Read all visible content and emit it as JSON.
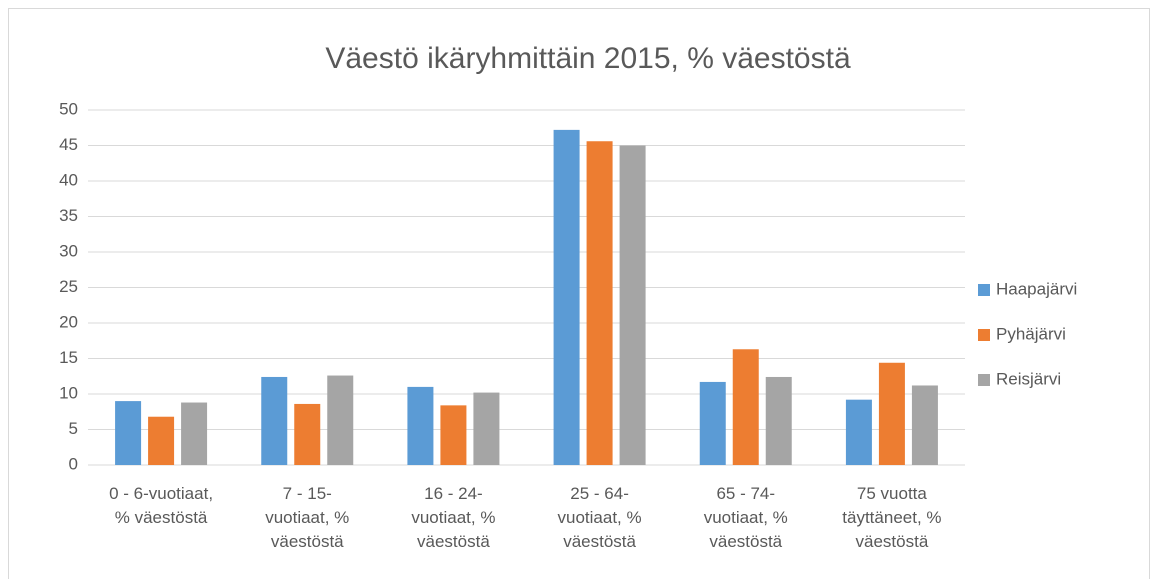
{
  "chart_data": {
    "type": "bar",
    "title": "Väestö ikäryhmittäin 2015, % väestöstä",
    "categories": [
      "0 - 6-vuotiaat,\n% väestöstä",
      "7 - 15-\nvuotiaat, %\nväestöstä",
      "16 - 24-\nvuotiaat, %\nväestöstä",
      "25 - 64-\nvuotiaat, %\nväestöstä",
      "65 - 74-\nvuotiaat, %\nväestöstä",
      "75 vuotta\ntäyttäneet, %\nväestöstä"
    ],
    "series": [
      {
        "name": "Haapajärvi",
        "color": "#5b9bd5",
        "values": [
          9.0,
          12.4,
          11.0,
          47.2,
          11.7,
          9.2
        ]
      },
      {
        "name": "Pyhäjärvi",
        "color": "#ed7d31",
        "values": [
          6.8,
          8.6,
          8.4,
          45.6,
          16.3,
          14.4
        ]
      },
      {
        "name": "Reisjärvi",
        "color": "#a5a5a5",
        "values": [
          8.8,
          12.6,
          10.2,
          45.0,
          12.4,
          11.2
        ]
      }
    ],
    "ylim": [
      0,
      50
    ],
    "yticks": [
      0,
      5,
      10,
      15,
      20,
      25,
      30,
      35,
      40,
      45,
      50
    ],
    "grid": true,
    "legend": "right"
  }
}
